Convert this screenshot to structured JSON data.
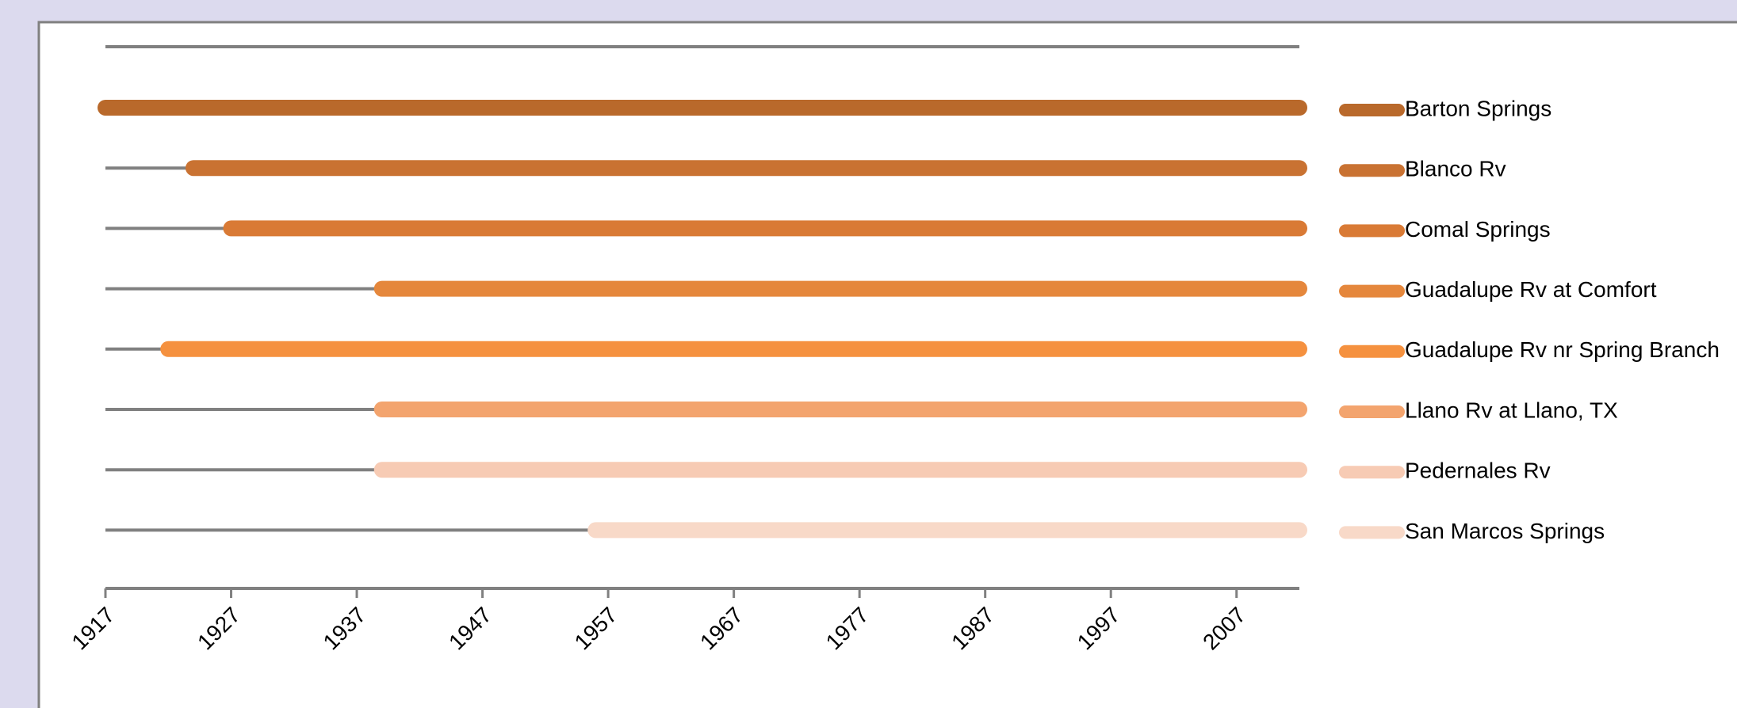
{
  "chart_data": {
    "type": "timeline",
    "categories": [
      "Barton Springs",
      "Blanco Rv",
      "Comal Springs",
      "Guadalupe Rv at Comfort",
      "Guadalupe Rv nr Spring Branch",
      "Llano Rv at Llano, TX",
      "Pedernales Rv",
      "San Marcos Springs"
    ],
    "start": [
      1917,
      1924,
      1927,
      1939,
      1922,
      1939,
      1939,
      1956
    ],
    "end": [
      2012,
      2012,
      2012,
      2012,
      2012,
      2012,
      2012,
      2012
    ],
    "colors": [
      "#b9692b",
      "#c97232",
      "#d97a35",
      "#e5873c",
      "#f5913f",
      "#f3a46e",
      "#f7cbb4",
      "#f8d9c8"
    ],
    "xlim": [
      1917,
      2012
    ],
    "xticks": [
      1917,
      1927,
      1937,
      1947,
      1957,
      1967,
      1977,
      1987,
      1997,
      2007
    ],
    "legend": "right"
  }
}
